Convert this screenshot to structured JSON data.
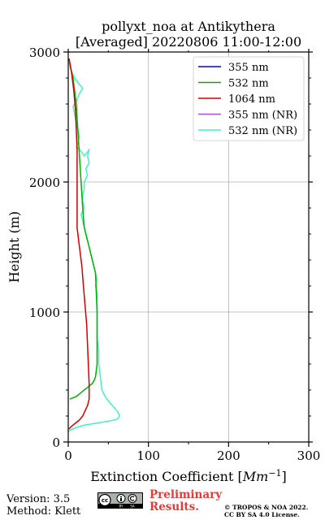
{
  "chart_data": {
    "type": "line",
    "title_line1": "pollyxt_noa at Antikythera",
    "title_line2": "[Averaged] 20220806 11:00-12:00",
    "xlabel": "Extinction Coefficient [",
    "xlabel_unit": "Mm",
    "xlabel_exp": "−1",
    "xlabel_close": "]",
    "ylabel": "Height (m)",
    "xlim": [
      0,
      300
    ],
    "ylim": [
      0,
      3000
    ],
    "x_ticks": [
      "0",
      "100",
      "200",
      "300"
    ],
    "y_ticks": [
      "0",
      "1000",
      "2000",
      "3000"
    ],
    "grid": true,
    "legend_position": "top-right",
    "series": [
      {
        "name": "355 nm",
        "color": "#0000e0",
        "x": [],
        "y": []
      },
      {
        "name": "532 nm",
        "color": "#00b000",
        "x": [
          2,
          6,
          10,
          12,
          14,
          16,
          18,
          20,
          22,
          26,
          30,
          34,
          36,
          36,
          34,
          32,
          30,
          28,
          26,
          24,
          22,
          20,
          18,
          16,
          14,
          12,
          10,
          8,
          6,
          4,
          2
        ],
        "y": [
          2900,
          2800,
          2600,
          2400,
          2200,
          2000,
          1800,
          1650,
          1600,
          1500,
          1400,
          1300,
          1000,
          600,
          500,
          470,
          450,
          440,
          430,
          420,
          410,
          400,
          390,
          380,
          370,
          360,
          350,
          345,
          340,
          335,
          330
        ]
      },
      {
        "name": "1064 nm",
        "color": "#d00000",
        "x": [
          1,
          4,
          7,
          9,
          10,
          11,
          11,
          11,
          11,
          11,
          13,
          15,
          17,
          19,
          21,
          23,
          24,
          25,
          26,
          26,
          24,
          21,
          18,
          14,
          10,
          6,
          3,
          1
        ],
        "y": [
          2950,
          2850,
          2700,
          2550,
          2400,
          2250,
          2100,
          1950,
          1800,
          1650,
          1550,
          1450,
          1350,
          1200,
          1050,
          900,
          750,
          600,
          450,
          330,
          280,
          240,
          200,
          170,
          150,
          130,
          115,
          100
        ]
      },
      {
        "name": "355 nm (NR)",
        "color": "#a050e0",
        "x": [],
        "y": []
      },
      {
        "name": "532 nm (NR)",
        "color": "#44f0c8",
        "x": [
          0,
          2,
          4,
          8,
          14,
          18,
          14,
          10,
          6,
          8,
          10,
          12,
          14,
          12,
          10,
          14,
          18,
          20,
          24,
          26,
          24,
          26,
          22,
          24,
          20,
          20,
          18,
          18,
          20,
          16,
          18,
          20,
          22,
          24,
          26,
          28,
          30,
          32,
          34,
          36,
          34,
          36,
          36,
          36,
          36,
          36,
          38,
          38,
          40,
          42,
          46,
          52,
          58,
          62,
          64,
          62,
          58,
          50,
          40,
          30,
          20,
          12,
          6,
          2,
          0
        ],
        "y": [
          2950,
          2900,
          2850,
          2800,
          2750,
          2720,
          2680,
          2620,
          2580,
          2520,
          2450,
          2400,
          2350,
          2300,
          2270,
          2250,
          2220,
          2200,
          2230,
          2250,
          2200,
          2150,
          2100,
          2050,
          2000,
          1950,
          1900,
          1850,
          1800,
          1750,
          1700,
          1650,
          1600,
          1550,
          1500,
          1450,
          1400,
          1350,
          1300,
          1250,
          1200,
          1150,
          1100,
          1000,
          900,
          800,
          700,
          600,
          500,
          400,
          350,
          300,
          260,
          230,
          200,
          180,
          170,
          160,
          150,
          140,
          130,
          115,
          100,
          90,
          80
        ]
      }
    ]
  },
  "footer": {
    "version": "Version: 3.5",
    "method": "Method: Klett",
    "preliminary_line1": "Preliminary",
    "preliminary_line2": "Results.",
    "copyright_line1": "© TROPOS & NOA 2022.",
    "copyright_line2": "CC BY SA 4.0 License."
  }
}
